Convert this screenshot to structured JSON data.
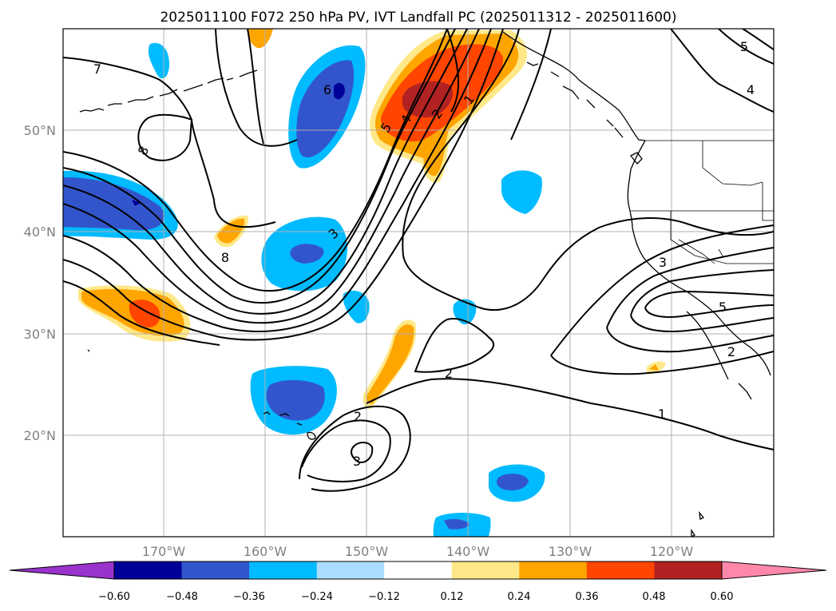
{
  "title": "2025011100 F072 250 hPa PV, IVT Landfall PC (2025011312 - 2025011600)",
  "lat_labels": [
    "50°N",
    "40°N",
    "30°N",
    "20°N"
  ],
  "lon_labels": [
    "170°W",
    "160°W",
    "150°W",
    "140°W",
    "130°W",
    "120°W"
  ],
  "colorbar": {
    "colors": [
      "#9933cc",
      "#000099",
      "#3355cc",
      "#00bbff",
      "#aaddff",
      "#ffffff",
      "#ffe888",
      "#ffa500",
      "#ff4500",
      "#b22222",
      "#ff88aa"
    ],
    "tick_labels": [
      "−0.60",
      "−0.48",
      "−0.36",
      "−0.24",
      "−0.12",
      "0.12",
      "0.24",
      "0.36",
      "0.48",
      "0.60"
    ]
  },
  "contour_labels": [
    "7",
    "8",
    "6",
    "5",
    "4",
    "2",
    "1",
    "4",
    "5",
    "8",
    "3",
    "3",
    "5",
    "2",
    "2",
    "2",
    "3",
    "1"
  ]
}
